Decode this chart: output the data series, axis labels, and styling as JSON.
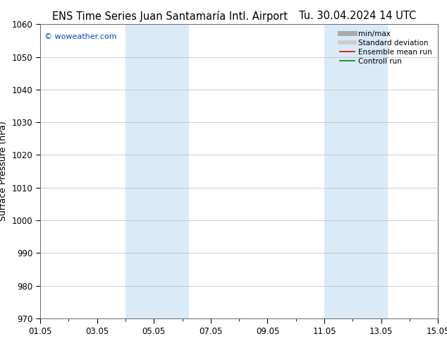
{
  "title_left": "ENS Time Series Juan Santamaría Intl. Airport",
  "title_right": "Tu. 30.04.2024 14 UTC",
  "ylabel": "Surface Pressure (hPa)",
  "ylim": [
    970,
    1060
  ],
  "yticks": [
    970,
    980,
    990,
    1000,
    1010,
    1020,
    1030,
    1040,
    1050,
    1060
  ],
  "xlim_start": 0,
  "xlim_end": 14,
  "xtick_labels": [
    "01.05",
    "03.05",
    "05.05",
    "07.05",
    "09.05",
    "11.05",
    "13.05",
    "15.05"
  ],
  "xtick_positions": [
    0,
    2,
    4,
    6,
    8,
    10,
    12,
    14
  ],
  "shaded_bands": [
    {
      "xmin": 3.0,
      "xmax": 5.2,
      "color": "#daeaf7"
    },
    {
      "xmin": 10.0,
      "xmax": 12.2,
      "color": "#daeaf7"
    }
  ],
  "watermark": "© woweather.com",
  "watermark_color": "#0044cc",
  "background_color": "#ffffff",
  "plot_bg_color": "#ffffff",
  "grid_color": "#bbbbbb",
  "legend_items": [
    {
      "label": "min/max",
      "color": "#aaaaaa",
      "lw": 5
    },
    {
      "label": "Standard deviation",
      "color": "#cccccc",
      "lw": 4
    },
    {
      "label": "Ensemble mean run",
      "color": "#dd0000",
      "lw": 1.2
    },
    {
      "label": "Controll run",
      "color": "#008800",
      "lw": 1.2
    }
  ],
  "title_fontsize": 10.5,
  "ylabel_fontsize": 9,
  "tick_fontsize": 8.5,
  "watermark_fontsize": 8,
  "legend_fontsize": 7.5
}
